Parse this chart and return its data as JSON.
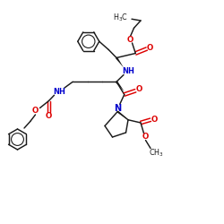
{
  "bg": "#ffffff",
  "bc": "#1a1a1a",
  "oc": "#dd0000",
  "nc": "#0000cc",
  "lw": 1.05,
  "figsize": [
    2.5,
    2.5
  ],
  "dpi": 100,
  "xlim": [
    0,
    10
  ],
  "ylim": [
    0,
    10
  ]
}
